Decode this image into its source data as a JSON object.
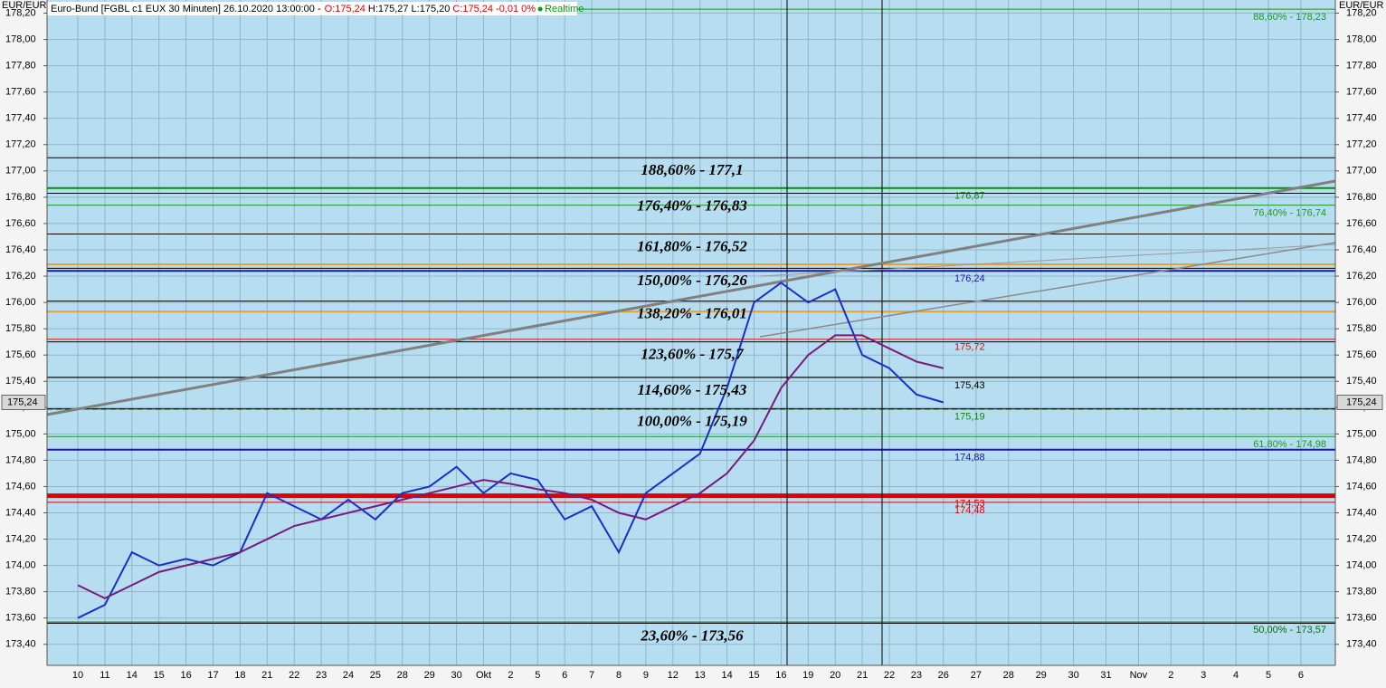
{
  "chart_data": {
    "type": "line",
    "title": "Euro-Bund [FGBL c1 EUX 30 Minuten] 26.10.2020 13:00:00 -",
    "quote": [
      {
        "text": "O:175,24",
        "color": "#e00000"
      },
      {
        "text": "H:175,27",
        "color": "#000000"
      },
      {
        "text": "L:175,20",
        "color": "#000000"
      },
      {
        "text": "C:175,24",
        "color": "#e00000"
      },
      {
        "text": "-0,01 0%",
        "color": "#e00000"
      },
      {
        "text": "Realtime",
        "color": "#00a000"
      }
    ],
    "axis_label": "EUR/EUR",
    "categories": [
      "10",
      "11",
      "14",
      "15",
      "16",
      "17",
      "18",
      "21",
      "22",
      "23",
      "24",
      "25",
      "28",
      "29",
      "30",
      "Okt",
      "2",
      "5",
      "6",
      "7",
      "8",
      "9",
      "12",
      "13",
      "14",
      "15",
      "16",
      "19",
      "20",
      "21",
      "22",
      "23",
      "26",
      "27",
      "28",
      "29",
      "30",
      "31",
      "Nov",
      "2",
      "3",
      "4",
      "5",
      "6"
    ],
    "series": [
      {
        "color": "#1a2fc8",
        "values": [
          173.6,
          173.7,
          174.1,
          174.0,
          174.05,
          174.0,
          174.1,
          174.55,
          174.45,
          174.35,
          174.5,
          174.35,
          174.55,
          174.6,
          174.75,
          174.55,
          174.7,
          174.65,
          174.35,
          174.45,
          174.1,
          174.55,
          174.7,
          174.85,
          175.35,
          176.0,
          176.15,
          176.0,
          176.1,
          175.6,
          175.5,
          175.3,
          175.24,
          null,
          null,
          null,
          null,
          null,
          null,
          null,
          null,
          null,
          null,
          null
        ]
      },
      {
        "color": "#7a1a7a",
        "values": [
          173.85,
          173.75,
          173.85,
          173.95,
          174.0,
          174.05,
          174.1,
          174.2,
          174.3,
          174.35,
          174.4,
          174.45,
          174.5,
          174.55,
          174.6,
          174.65,
          174.62,
          174.58,
          174.55,
          174.5,
          174.4,
          174.35,
          174.45,
          174.55,
          174.7,
          174.95,
          175.35,
          175.6,
          175.75,
          175.75,
          175.65,
          175.55,
          175.5,
          null,
          null,
          null,
          null,
          null,
          null,
          null,
          null,
          null,
          null,
          null
        ]
      }
    ],
    "ylim": [
      173.24,
      178.3
    ],
    "yticks": [
      {
        "value": 173.4,
        "label": "173,40"
      },
      {
        "value": 173.6,
        "label": "173,60"
      },
      {
        "value": 173.8,
        "label": "173,80"
      },
      {
        "value": 174.0,
        "label": "174,00"
      },
      {
        "value": 174.2,
        "label": "174,20"
      },
      {
        "value": 174.4,
        "label": "174,40"
      },
      {
        "value": 174.6,
        "label": "174,60"
      },
      {
        "value": 174.8,
        "label": "174,80"
      },
      {
        "value": 175.0,
        "label": "175,00"
      },
      {
        "value": 175.2,
        "label": "175,20"
      },
      {
        "value": 175.4,
        "label": "175,40"
      },
      {
        "value": 175.6,
        "label": "175,60"
      },
      {
        "value": 175.8,
        "label": "175,80"
      },
      {
        "value": 176.0,
        "label": "176,00"
      },
      {
        "value": 176.2,
        "label": "176,20"
      },
      {
        "value": 176.4,
        "label": "176,40"
      },
      {
        "value": 176.6,
        "label": "176,60"
      },
      {
        "value": 176.8,
        "label": "176,80"
      },
      {
        "value": 177.0,
        "label": "177,00"
      },
      {
        "value": 177.2,
        "label": "177,20"
      },
      {
        "value": 177.4,
        "label": "177,40"
      },
      {
        "value": 177.6,
        "label": "177,60"
      },
      {
        "value": 177.8,
        "label": "177,80"
      },
      {
        "value": 178.0,
        "label": "178,00"
      },
      {
        "value": 178.2,
        "label": "178,20"
      }
    ],
    "grid": true,
    "fib_levels": [
      {
        "value": 177.1,
        "label": "188,60% - 177,1"
      },
      {
        "value": 176.83,
        "label": "176,40% - 176,83"
      },
      {
        "value": 176.52,
        "label": "161,80% - 176,52"
      },
      {
        "value": 176.26,
        "label": "150,00% - 176,26"
      },
      {
        "value": 176.01,
        "label": "138,20% - 176,01"
      },
      {
        "value": 175.7,
        "label": "123,60% - 175,7"
      },
      {
        "value": 175.43,
        "label": "114,60% - 175,43"
      },
      {
        "value": 175.19,
        "label": "100,00% - 175,19"
      },
      {
        "value": 173.56,
        "label": "23,60% - 173,56"
      }
    ],
    "levels": [
      {
        "value": 178.23,
        "label": "88,60% - 178,23",
        "color": "#1a9a1a",
        "style": "thin",
        "label_side": "right"
      },
      {
        "value": 176.74,
        "label": "76,40% - 176,74",
        "color": "#1a9a1a",
        "style": "thin",
        "label_side": "right"
      },
      {
        "value": 174.98,
        "label": "61,80% - 174,98",
        "color": "#1a9a1a",
        "style": "thin",
        "label_side": "right"
      },
      {
        "value": 173.57,
        "label": "50,00% - 173,57",
        "color": "#0a6a0a",
        "style": "thin",
        "label_side": "right"
      },
      {
        "value": 176.87,
        "label": "176,87",
        "color": "#0a8a0a",
        "style": "thick",
        "label_side": "middle"
      },
      {
        "value": 176.29,
        "color": "#e8a030",
        "style": "thick"
      },
      {
        "value": 176.24,
        "label": "176,24",
        "color": "#1a1a9a",
        "style": "thick",
        "label_side": "middle"
      },
      {
        "value": 175.93,
        "color": "#e8a030",
        "style": "thick"
      },
      {
        "value": 175.72,
        "label": "175,72",
        "color": "#d01010",
        "style": "thin",
        "label_side": "middle"
      },
      {
        "value": 175.43,
        "label": "175,43",
        "color": "#000000",
        "style": "thin",
        "label_side": "middle"
      },
      {
        "value": 175.19,
        "label": "175,19",
        "color": "#0a8a0a",
        "style": "dashed",
        "label_side": "middle"
      },
      {
        "value": 174.88,
        "label": "174,88",
        "color": "#1a1a9a",
        "style": "thick",
        "label_side": "middle"
      },
      {
        "value": 174.53,
        "label": "174,53",
        "color": "#e00000",
        "style": "heavy",
        "label_side": "middle"
      },
      {
        "value": 174.48,
        "label": "174,48",
        "color": "#e00000",
        "style": "thin",
        "label_side": "middle"
      }
    ],
    "last_price": {
      "value": 175.24,
      "label": "175,24"
    }
  }
}
